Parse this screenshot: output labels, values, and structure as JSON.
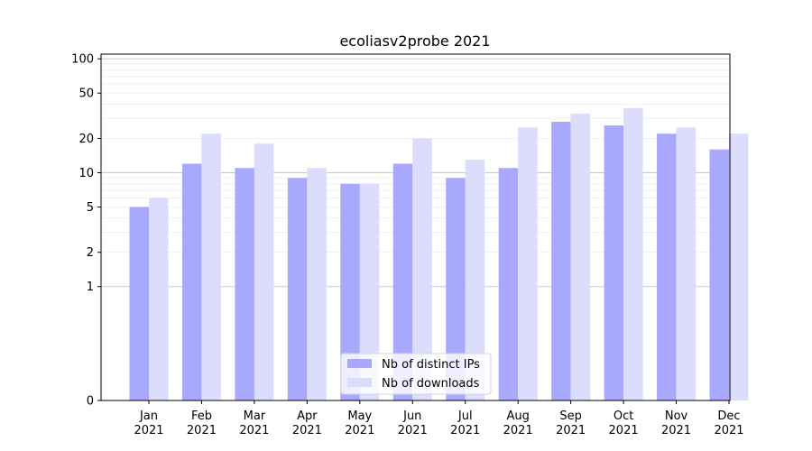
{
  "chart_data": {
    "type": "bar",
    "title": "ecoliasv2probe 2021",
    "xlabel": "",
    "ylabel": "",
    "scale": "symlog",
    "categories": [
      [
        "Jan",
        "2021"
      ],
      [
        "Feb",
        "2021"
      ],
      [
        "Mar",
        "2021"
      ],
      [
        "Apr",
        "2021"
      ],
      [
        "May",
        "2021"
      ],
      [
        "Jun",
        "2021"
      ],
      [
        "Jul",
        "2021"
      ],
      [
        "Aug",
        "2021"
      ],
      [
        "Sep",
        "2021"
      ],
      [
        "Oct",
        "2021"
      ],
      [
        "Nov",
        "2021"
      ],
      [
        "Dec",
        "2021"
      ]
    ],
    "series": [
      {
        "name": "Nb of distinct IPs",
        "color": "#a8a8fc",
        "values": [
          5,
          12,
          11,
          9,
          8,
          12,
          9,
          11,
          28,
          26,
          22,
          16
        ]
      },
      {
        "name": "Nb of downloads",
        "color": "#dcdcfc",
        "values": [
          6,
          22,
          18,
          11,
          8,
          20,
          13,
          25,
          33,
          37,
          25,
          22
        ]
      }
    ],
    "yticks": [
      "0",
      "1",
      "2",
      "5",
      "10",
      "20",
      "50",
      "100"
    ],
    "ytick_values": [
      0,
      1,
      2,
      5,
      10,
      20,
      50,
      100
    ],
    "ylim": [
      0,
      110
    ],
    "legend": "lower-center",
    "grid": true
  }
}
